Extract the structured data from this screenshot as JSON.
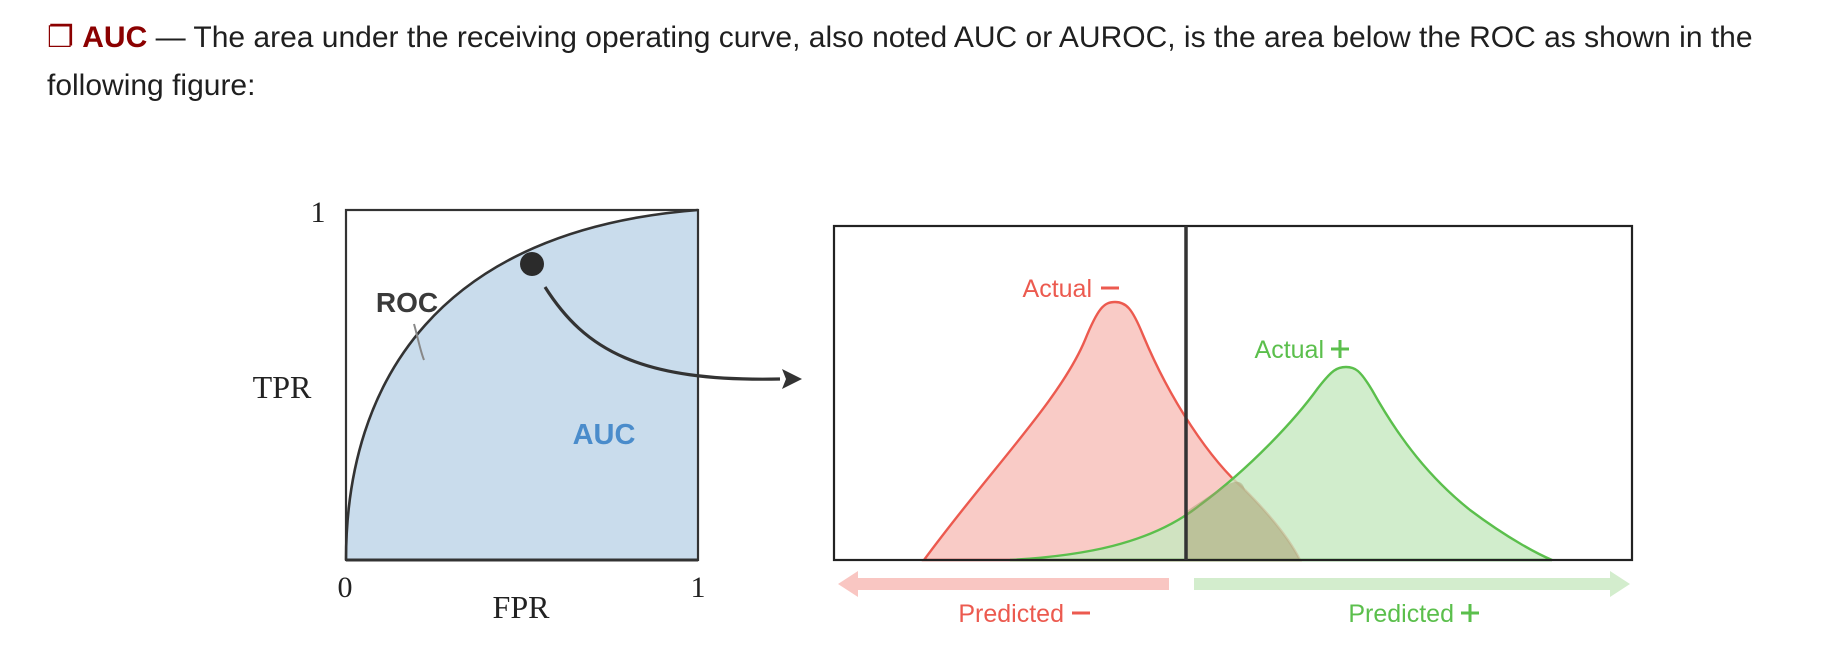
{
  "paragraph": {
    "icon": "checkbox-icon",
    "term": "AUC",
    "dash": "—",
    "text": "The area under the receiving operating curve, also noted AUC or AUROC, is the area below the ROC as shown in the following figure:"
  },
  "roc_plot": {
    "y_axis_label": "TPR",
    "x_axis_label": "FPR",
    "y_tick_top": "1",
    "origin_label": "0",
    "x_tick_right": "1",
    "curve_label": "ROC",
    "area_label": "AUC"
  },
  "distribution_plot": {
    "actual_negative_label": "Actual",
    "actual_positive_label": "Actual",
    "predicted_negative_label": "Predicted",
    "predicted_positive_label": "Predicted"
  },
  "colors": {
    "term": "#8b0000",
    "auc_fill": "#c9dcec",
    "auc_text": "#4a8ccb",
    "negative": "#ec5a4f",
    "negative_fill": "#f7b9b3",
    "negative_arrow": "#f9c6c2",
    "positive": "#5bbf4c",
    "positive_fill": "#c6e8bf",
    "positive_arrow": "#d3edcd",
    "axis": "#333333"
  }
}
